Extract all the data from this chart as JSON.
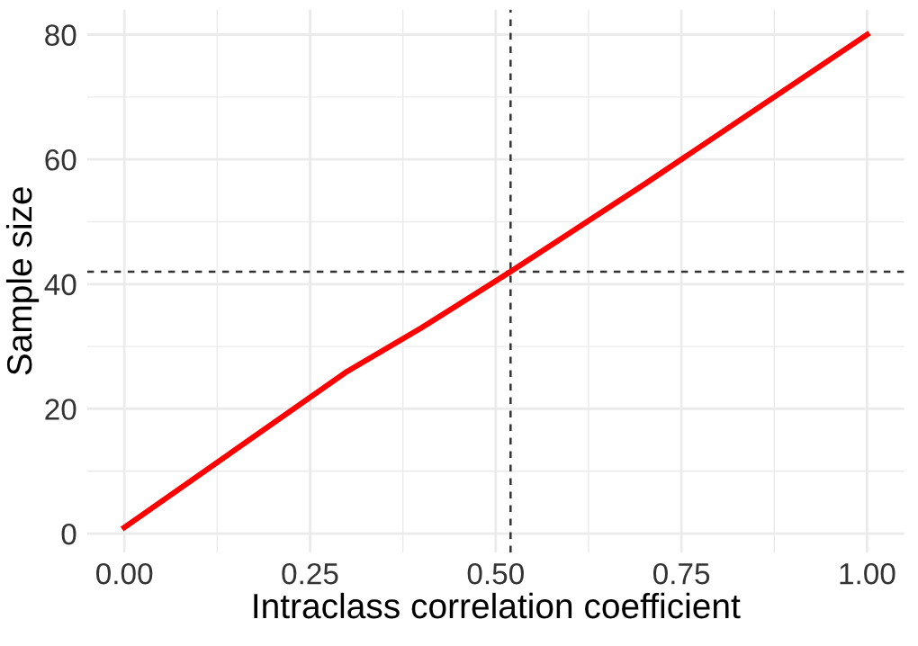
{
  "chart_data": {
    "type": "line",
    "xlabel": "Intraclass correlation coefficient",
    "ylabel": "Sample size",
    "x": [
      0,
      0.3,
      0.4,
      0.52,
      0.7,
      1.0
    ],
    "series": [
      {
        "color": "#ff0000",
        "values": [
          1,
          26,
          33,
          42,
          56,
          80
        ]
      }
    ],
    "xlim": [
      -0.05,
      1.05
    ],
    "ylim": [
      -3,
      84
    ],
    "xticks": [
      {
        "value": 0,
        "label": "0.00"
      },
      {
        "value": 0.125,
        "label": null
      },
      {
        "value": 0.25,
        "label": "0.25"
      },
      {
        "value": 0.375,
        "label": null
      },
      {
        "value": 0.5,
        "label": "0.50"
      },
      {
        "value": 0.625,
        "label": null
      },
      {
        "value": 0.75,
        "label": "0.75"
      },
      {
        "value": 0.875,
        "label": null
      },
      {
        "value": 1.0,
        "label": "1.00"
      }
    ],
    "yticks": [
      0,
      {
        "value": 10,
        "label": null
      },
      20,
      {
        "value": 30,
        "label": null
      },
      40,
      {
        "value": 50,
        "label": null
      },
      60,
      {
        "value": 70,
        "label": null
      },
      80
    ],
    "ref_lines": [
      {
        "axis": "x",
        "value": 0.52,
        "color": "#333333",
        "line_style": "dashed"
      },
      {
        "axis": "y",
        "value": 42,
        "color": "#333333",
        "line_style": "dashed"
      }
    ],
    "grid": true,
    "line_style": "solid",
    "marker": "none"
  }
}
